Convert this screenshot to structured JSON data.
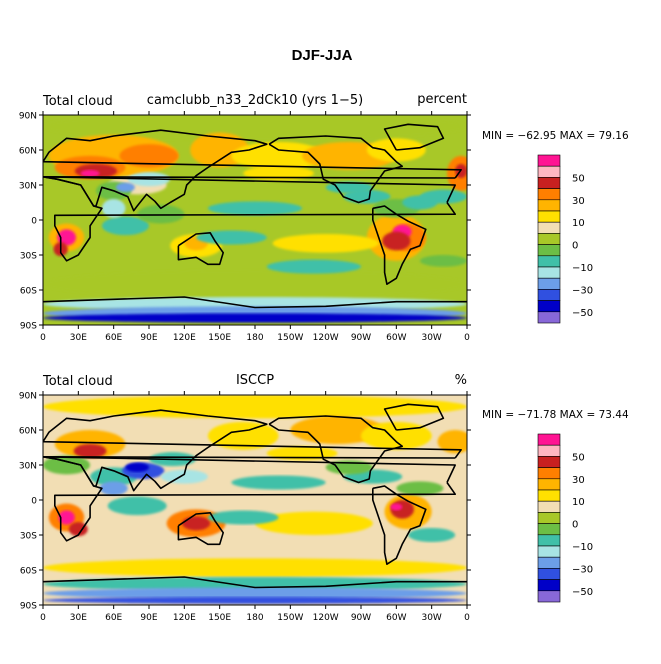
{
  "title": "DJF-JJA",
  "lat_labels": [
    "90N",
    "60N",
    "30N",
    "0",
    "30S",
    "60S",
    "90S"
  ],
  "lon_labels": [
    "0",
    "30E",
    "60E",
    "90E",
    "120E",
    "150E",
    "180",
    "150W",
    "120W",
    "90W",
    "60W",
    "30W",
    "0"
  ],
  "colorbar": {
    "labels": [
      "50",
      "30",
      "10",
      "0",
      "−10",
      "−30",
      "−50"
    ],
    "colors": [
      "#ff1493",
      "#ffb6c1",
      "#c82020",
      "#ff7f00",
      "#ffb400",
      "#ffe000",
      "#f2deb4",
      "#a8c828",
      "#6cbe45",
      "#40c0a8",
      "#a8e4e4",
      "#6c9ee8",
      "#3050e0",
      "#0000c8",
      "#8868d8"
    ]
  },
  "panels": [
    {
      "left_label": "Total cloud",
      "center_label": "camclubb_n33_2dCk10 (yrs 1−5)",
      "right_label": "percent",
      "min_max": "MIN = −62.95 MAX =  79.16"
    },
    {
      "left_label": "Total cloud",
      "center_label": "ISCCP",
      "right_label": "%",
      "min_max": "MIN = −71.78 MAX =  73.44"
    }
  ]
}
